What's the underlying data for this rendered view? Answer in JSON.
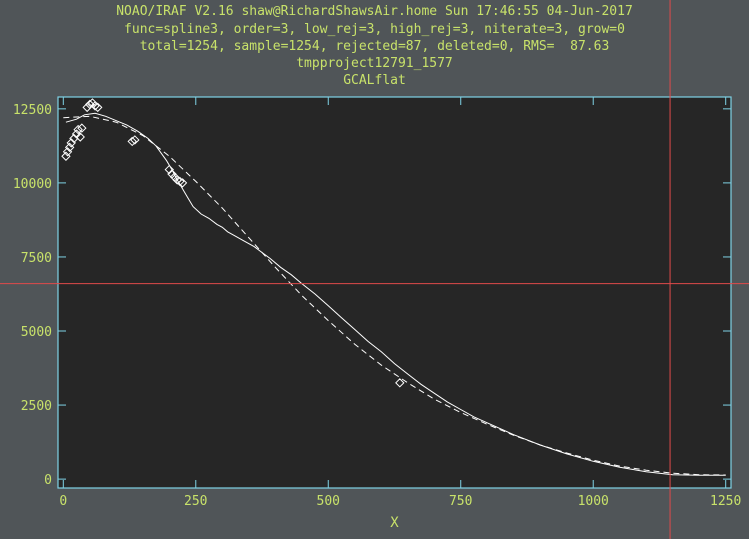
{
  "header": {
    "line1": "NOAO/IRAF V2.16 shaw@RichardShawsAir.home Sun 17:46:55 04-Jun-2017",
    "line2": "func=spline3, order=3, low_rej=3, high_rej=3, niterate=3, grow=0",
    "line3": "total=1254, sample=1254, rejected=87, deleted=0, RMS=  87.63",
    "line4": "tmpproject12791_1577",
    "line5": "GCALflat"
  },
  "colors": {
    "background": "#505558",
    "plot_bg": "#262626",
    "frame": "#7fd3e6",
    "text": "#c8e26a",
    "data": "#ffffff",
    "cursor": "#e04a4a"
  },
  "chart_data": {
    "type": "line",
    "title": "GCALflat",
    "xlabel": "X",
    "ylabel": "",
    "xlim": [
      -10,
      1260
    ],
    "ylim": [
      -300,
      12900
    ],
    "xticks": [
      0,
      250,
      500,
      750,
      1000,
      1250
    ],
    "yticks": [
      0,
      2500,
      5000,
      7500,
      10000,
      12500
    ],
    "grid": false,
    "cursor": {
      "x": 1145,
      "y": 6600
    },
    "series": [
      {
        "style": "solid",
        "x": [
          5,
          25,
          40,
          60,
          80,
          100,
          120,
          140,
          160,
          175,
          185,
          195,
          205,
          215,
          225,
          235,
          245,
          260,
          275,
          290,
          300,
          310,
          325,
          340,
          360,
          375,
          390,
          410,
          430,
          450,
          475,
          500,
          525,
          550,
          575,
          600,
          625,
          650,
          675,
          700,
          725,
          750,
          775,
          800,
          850,
          900,
          950,
          1000,
          1050,
          1100,
          1150,
          1200,
          1250
        ],
        "y": [
          12050,
          12150,
          12300,
          12350,
          12250,
          12100,
          11950,
          11750,
          11500,
          11250,
          11000,
          10750,
          10450,
          10100,
          9800,
          9500,
          9200,
          8950,
          8800,
          8600,
          8500,
          8350,
          8200,
          8050,
          7850,
          7650,
          7450,
          7150,
          6900,
          6600,
          6250,
          5850,
          5450,
          5050,
          4650,
          4300,
          3900,
          3550,
          3200,
          2900,
          2600,
          2350,
          2100,
          1900,
          1500,
          1150,
          850,
          600,
          400,
          250,
          150,
          130,
          130
        ]
      },
      {
        "style": "dashed",
        "x": [
          0,
          50,
          100,
          150,
          200,
          250,
          300,
          350,
          400,
          450,
          500,
          550,
          600,
          650,
          700,
          750,
          800,
          850,
          900,
          950,
          1000,
          1050,
          1100,
          1150,
          1200,
          1250
        ],
        "y": [
          12200,
          12250,
          12050,
          11600,
          10900,
          10050,
          9150,
          8150,
          7150,
          6200,
          5350,
          4550,
          3850,
          3250,
          2700,
          2250,
          1850,
          1480,
          1150,
          880,
          640,
          440,
          300,
          200,
          150,
          140
        ]
      },
      {
        "style": "rejected",
        "x": [
          5,
          8,
          12,
          15,
          20,
          25,
          28,
          32,
          35,
          45,
          50,
          55,
          60,
          65,
          130,
          135,
          200,
          205,
          210,
          215,
          220,
          225,
          635
        ],
        "y": [
          10900,
          11050,
          11200,
          11350,
          11500,
          11650,
          11800,
          11550,
          11850,
          12550,
          12650,
          12700,
          12600,
          12550,
          11400,
          11450,
          10450,
          10300,
          10200,
          10100,
          10050,
          10000,
          3250
        ]
      }
    ]
  }
}
